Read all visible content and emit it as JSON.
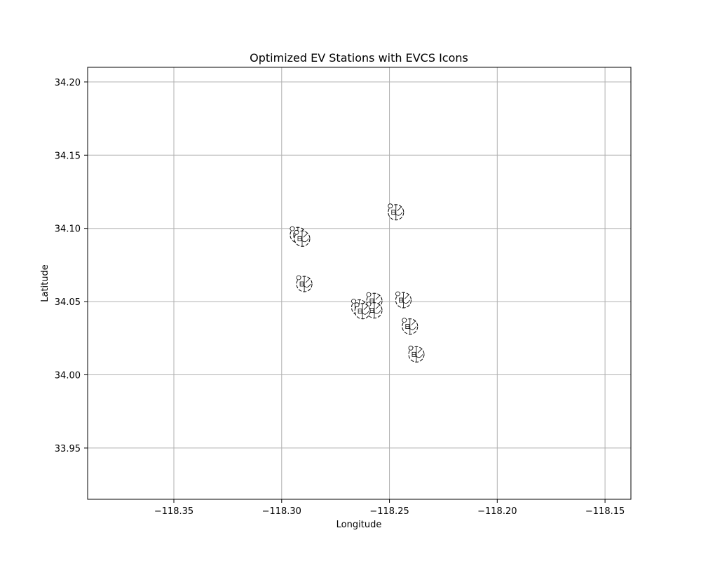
{
  "chart_data": {
    "type": "scatter",
    "title": "Optimized EV Stations with EVCS Icons",
    "xlabel": "Longitude",
    "ylabel": "Latitude",
    "xlim": [
      -118.39,
      -118.138
    ],
    "ylim": [
      33.915,
      34.21
    ],
    "x_ticks": [
      -118.35,
      -118.3,
      -118.25,
      -118.2,
      -118.15
    ],
    "x_tick_labels": [
      "−118.35",
      "−118.30",
      "−118.25",
      "−118.20",
      "−118.15"
    ],
    "y_ticks": [
      33.95,
      34.0,
      34.05,
      34.1,
      34.15,
      34.2
    ],
    "y_tick_labels": [
      "33.95",
      "34.00",
      "34.05",
      "34.10",
      "34.15",
      "34.20"
    ],
    "grid": true,
    "marker_icon": "evcs-station-icon",
    "points": [
      {
        "x": -118.247,
        "y": 34.111
      },
      {
        "x": -118.2925,
        "y": 34.0955
      },
      {
        "x": -118.2905,
        "y": 34.093
      },
      {
        "x": -118.2895,
        "y": 34.062
      },
      {
        "x": -118.257,
        "y": 34.0505
      },
      {
        "x": -118.257,
        "y": 34.044
      },
      {
        "x": -118.264,
        "y": 34.046
      },
      {
        "x": -118.2625,
        "y": 34.0435
      },
      {
        "x": -118.2435,
        "y": 34.051
      },
      {
        "x": -118.2405,
        "y": 34.033
      },
      {
        "x": -118.2375,
        "y": 34.014
      }
    ]
  }
}
